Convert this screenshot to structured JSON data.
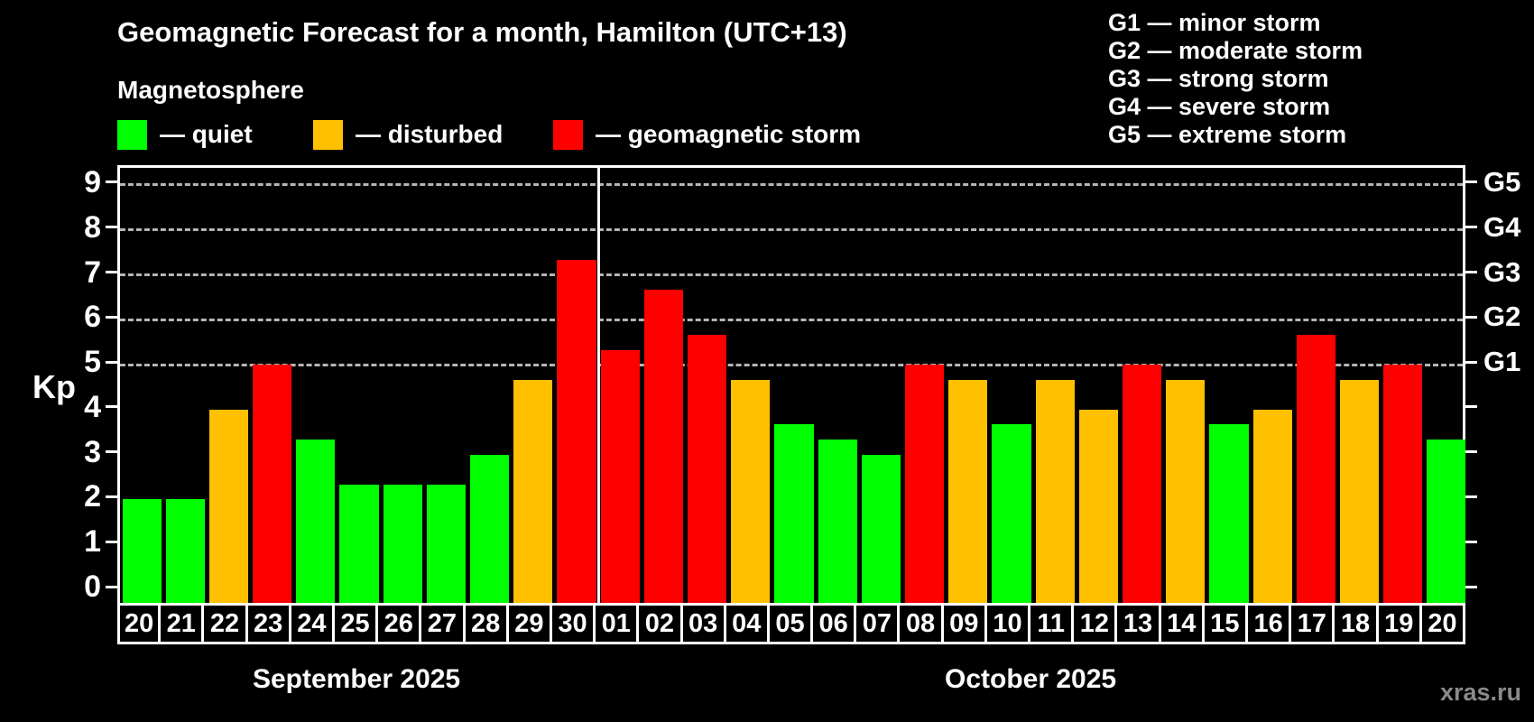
{
  "title": "Geomagnetic Forecast for a month, Hamilton (UTC+13)",
  "subtitle": "Magnetosphere",
  "legend": {
    "items": [
      {
        "key": "quiet",
        "label": "— quiet",
        "color": "#00ff00"
      },
      {
        "key": "disturbed",
        "label": "— disturbed",
        "color": "#ffc000"
      },
      {
        "key": "storm",
        "label": "— geomagnetic storm",
        "color": "#ff0000"
      }
    ]
  },
  "g_scale_legend": {
    "items": [
      "G1 — minor storm",
      "G2 — moderate storm",
      "G3 — strong storm",
      "G4 — severe storm",
      "G5 — extreme storm"
    ]
  },
  "watermark": "xras.ru",
  "chart_data": {
    "type": "bar",
    "ylabel": "Kp",
    "ylim": [
      0,
      9
    ],
    "yticks": [
      0,
      1,
      2,
      3,
      4,
      5,
      6,
      7,
      8,
      9
    ],
    "gridlines_at": [
      5,
      6,
      7,
      8,
      9
    ],
    "grid": "dashed horizontal at G-storm levels only",
    "legend_position": "top",
    "right_axis_labels": [
      {
        "label": "G1",
        "kp": 5
      },
      {
        "label": "G2",
        "kp": 6
      },
      {
        "label": "G3",
        "kp": 7
      },
      {
        "label": "G4",
        "kp": 8
      },
      {
        "label": "G5",
        "kp": 9
      }
    ],
    "status_colors": {
      "quiet": "#00ff00",
      "disturbed": "#ffc000",
      "storm": "#ff0000"
    },
    "months": [
      {
        "label": "September 2025",
        "start": 0,
        "count": 11
      },
      {
        "label": "October 2025",
        "start": 11,
        "count": 20
      }
    ],
    "bars": [
      {
        "day": "20",
        "kp": 2.0,
        "status": "quiet"
      },
      {
        "day": "21",
        "kp": 2.0,
        "status": "quiet"
      },
      {
        "day": "22",
        "kp": 4.0,
        "status": "disturbed"
      },
      {
        "day": "23",
        "kp": 5.0,
        "status": "storm"
      },
      {
        "day": "24",
        "kp": 3.33,
        "status": "quiet"
      },
      {
        "day": "25",
        "kp": 2.33,
        "status": "quiet"
      },
      {
        "day": "26",
        "kp": 2.33,
        "status": "quiet"
      },
      {
        "day": "27",
        "kp": 2.33,
        "status": "quiet"
      },
      {
        "day": "28",
        "kp": 3.0,
        "status": "quiet"
      },
      {
        "day": "29",
        "kp": 4.67,
        "status": "disturbed"
      },
      {
        "day": "30",
        "kp": 7.33,
        "status": "storm"
      },
      {
        "day": "01",
        "kp": 5.33,
        "status": "storm"
      },
      {
        "day": "02",
        "kp": 6.67,
        "status": "storm"
      },
      {
        "day": "03",
        "kp": 5.67,
        "status": "storm"
      },
      {
        "day": "04",
        "kp": 4.67,
        "status": "disturbed"
      },
      {
        "day": "05",
        "kp": 3.67,
        "status": "quiet"
      },
      {
        "day": "06",
        "kp": 3.33,
        "status": "quiet"
      },
      {
        "day": "07",
        "kp": 3.0,
        "status": "quiet"
      },
      {
        "day": "08",
        "kp": 5.0,
        "status": "storm"
      },
      {
        "day": "09",
        "kp": 4.67,
        "status": "disturbed"
      },
      {
        "day": "10",
        "kp": 3.67,
        "status": "quiet"
      },
      {
        "day": "11",
        "kp": 4.67,
        "status": "disturbed"
      },
      {
        "day": "12",
        "kp": 4.0,
        "status": "disturbed"
      },
      {
        "day": "13",
        "kp": 5.0,
        "status": "storm"
      },
      {
        "day": "14",
        "kp": 4.67,
        "status": "disturbed"
      },
      {
        "day": "15",
        "kp": 3.67,
        "status": "quiet"
      },
      {
        "day": "16",
        "kp": 4.0,
        "status": "disturbed"
      },
      {
        "day": "17",
        "kp": 5.67,
        "status": "storm"
      },
      {
        "day": "18",
        "kp": 4.67,
        "status": "disturbed"
      },
      {
        "day": "19",
        "kp": 5.0,
        "status": "storm"
      },
      {
        "day": "20",
        "kp": 3.33,
        "status": "quiet"
      }
    ]
  }
}
